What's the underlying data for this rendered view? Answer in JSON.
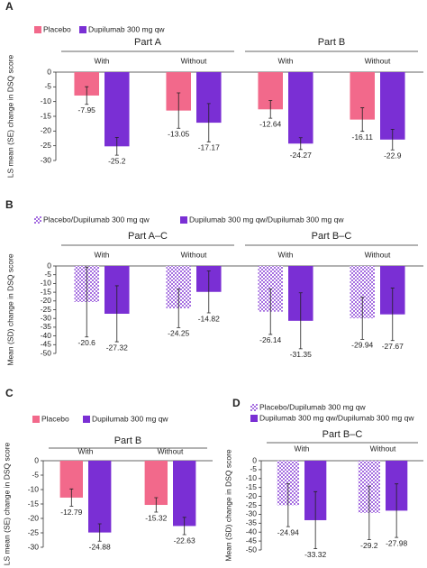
{
  "chart_data": [
    {
      "type": "bar",
      "panel": "A",
      "y_label": "LS mean (SE) change in DSQ score",
      "groups": [
        "Part A",
        "Part B"
      ],
      "subgroups": [
        "With",
        "Without"
      ],
      "ylim": [
        0,
        -30
      ],
      "yticks": [
        0,
        -5,
        -10,
        -15,
        -20,
        -25,
        -30
      ],
      "series": [
        {
          "name": "Placebo",
          "color": "#f2698b",
          "values": [
            -7.95,
            -13.05,
            -12.64,
            -16.11
          ],
          "errors": [
            3,
            6,
            3,
            4
          ]
        },
        {
          "name": "Dupilumab 300 mg qw",
          "color": "#7a2fd4",
          "values": [
            -25.2,
            -17.17,
            -24.27,
            -22.9
          ],
          "errors": [
            3,
            6.5,
            2,
            3.5
          ]
        }
      ]
    },
    {
      "type": "bar",
      "panel": "B",
      "y_label": "Mean (SD) change in DSQ score",
      "groups": [
        "Part A–C",
        "Part B–C"
      ],
      "subgroups": [
        "With",
        "Without"
      ],
      "ylim": [
        0,
        -50
      ],
      "yticks": [
        0,
        -5,
        -10,
        -15,
        -20,
        -25,
        -30,
        -35,
        -40,
        -45,
        -50
      ],
      "series": [
        {
          "name": "Placebo/Dupilumab 300 mg qw",
          "color": "#a56ee0",
          "pattern": "checker",
          "values": [
            -20.6,
            -24.25,
            -26.14,
            -29.94
          ],
          "errors": [
            20,
            11,
            13,
            12
          ]
        },
        {
          "name": "Dupilumab 300 mg qw/Dupilumab 300 mg qw",
          "color": "#7a2fd4",
          "values": [
            -27.32,
            -14.82,
            -31.35,
            -27.67
          ],
          "errors": [
            16,
            12,
            16,
            15
          ]
        }
      ]
    },
    {
      "type": "bar",
      "panel": "C",
      "y_label": "LS mean (SE) change in DSQ score",
      "groups": [
        "Part B"
      ],
      "subgroups": [
        "With",
        "Without"
      ],
      "ylim": [
        0,
        -30
      ],
      "yticks": [
        0,
        -5,
        -10,
        -15,
        -20,
        -25,
        -30
      ],
      "series": [
        {
          "name": "Placebo",
          "color": "#f2698b",
          "values": [
            -12.79,
            -15.32
          ],
          "errors": [
            3,
            2.5
          ]
        },
        {
          "name": "Dupilumab 300 mg qw",
          "color": "#7a2fd4",
          "values": [
            -24.88,
            -22.63
          ],
          "errors": [
            3,
            3
          ]
        }
      ]
    },
    {
      "type": "bar",
      "panel": "D",
      "y_label": "Mean (SD) change in DSQ score",
      "groups": [
        "Part B–C"
      ],
      "subgroups": [
        "With",
        "Without"
      ],
      "ylim": [
        0,
        -50
      ],
      "yticks": [
        0,
        -5,
        -10,
        -15,
        -20,
        -25,
        -30,
        -35,
        -40,
        -45,
        -50
      ],
      "series": [
        {
          "name": "Placebo/Dupilumab 300 mg qw",
          "color": "#a56ee0",
          "pattern": "checker",
          "values": [
            -24.94,
            -29.2
          ],
          "errors": [
            12,
            15
          ]
        },
        {
          "name": "Dupilumab 300 mg qw/Dupilumab 300 mg qw",
          "color": "#7a2fd4",
          "values": [
            -33.32,
            -27.98
          ],
          "errors": [
            16,
            15
          ]
        }
      ]
    }
  ]
}
